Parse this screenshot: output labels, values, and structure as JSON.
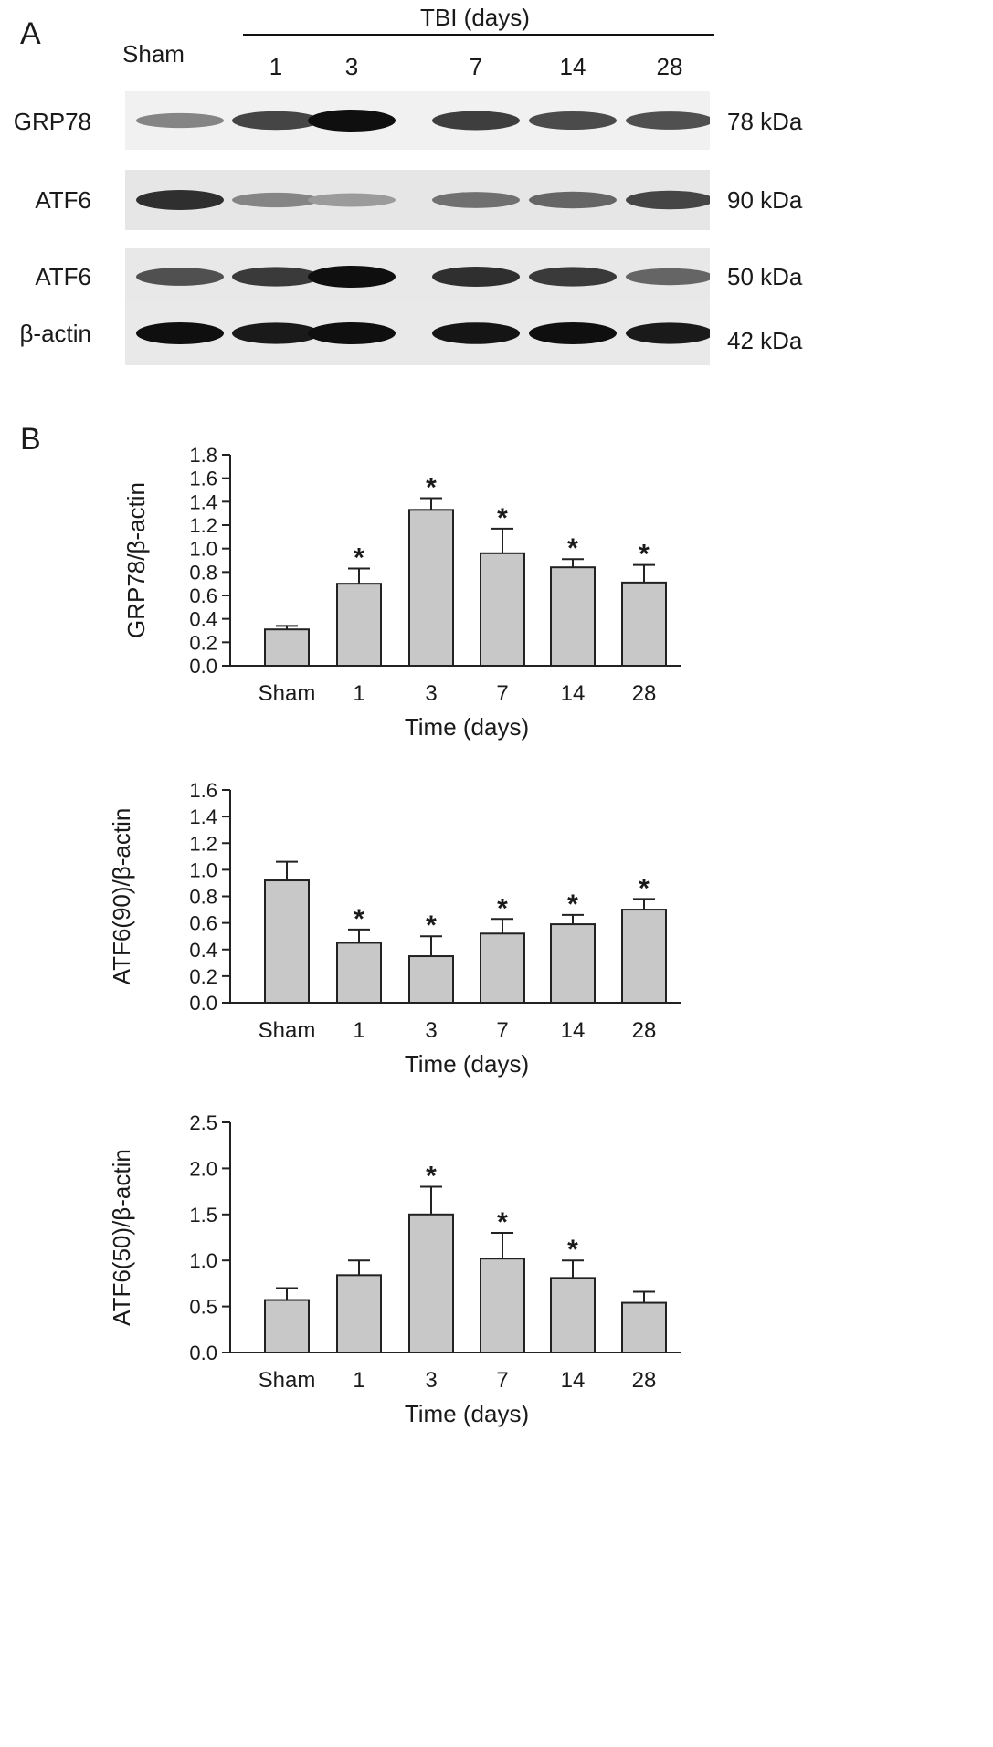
{
  "panel_a": {
    "letter": "A",
    "header": "TBI (days)",
    "lanes": [
      "Sham",
      "1",
      "3",
      "7",
      "14",
      "28"
    ],
    "rows": [
      {
        "label": "GRP78",
        "kda": "78 kDa",
        "intensity": [
          0.45,
          0.75,
          1.0,
          0.78,
          0.72,
          0.7
        ],
        "bg": "#f1f1f1"
      },
      {
        "label": "ATF6",
        "kda": "90 kDa",
        "intensity": [
          0.85,
          0.45,
          0.35,
          0.55,
          0.6,
          0.75
        ],
        "bg": "#e6e6e6"
      },
      {
        "label": "ATF6",
        "kda": "50 kDa",
        "intensity": [
          0.7,
          0.8,
          1.0,
          0.85,
          0.8,
          0.6
        ],
        "bg": "#e8e8e8"
      },
      {
        "label": "β-actin",
        "kda": "42 kDa",
        "intensity": [
          1.0,
          0.95,
          1.0,
          0.97,
          1.0,
          0.95
        ],
        "bg": "#e9e9e9"
      }
    ]
  },
  "panel_b": {
    "letter": "B"
  },
  "chart_data": [
    {
      "type": "bar",
      "categories": [
        "Sham",
        "1",
        "3",
        "7",
        "14",
        "28"
      ],
      "values": [
        0.31,
        0.7,
        1.33,
        0.96,
        0.84,
        0.71
      ],
      "errors": [
        0.03,
        0.13,
        0.1,
        0.21,
        0.07,
        0.15
      ],
      "significant": [
        false,
        true,
        true,
        true,
        true,
        true
      ],
      "star": "*",
      "ylabel": "GRP78/β-actin",
      "xlabel": "Time (days)",
      "ylim": [
        0,
        1.8
      ],
      "yticks": [
        "0.0",
        "0.2",
        "0.4",
        "0.6",
        "0.8",
        "1.0",
        "1.2",
        "1.4",
        "1.6",
        "1.8"
      ],
      "bar_color": "#c8c8c8"
    },
    {
      "type": "bar",
      "categories": [
        "Sham",
        "1",
        "3",
        "7",
        "14",
        "28"
      ],
      "values": [
        0.92,
        0.45,
        0.35,
        0.52,
        0.59,
        0.7
      ],
      "errors": [
        0.14,
        0.1,
        0.15,
        0.11,
        0.07,
        0.08
      ],
      "significant": [
        false,
        true,
        true,
        true,
        true,
        true
      ],
      "star": "*",
      "ylabel": "ATF6(90)/β-actin",
      "xlabel": "Time (days)",
      "ylim": [
        0,
        1.6
      ],
      "yticks": [
        "0.0",
        "0.2",
        "0.4",
        "0.6",
        "0.8",
        "1.0",
        "1.2",
        "1.4",
        "1.6"
      ],
      "bar_color": "#c8c8c8"
    },
    {
      "type": "bar",
      "categories": [
        "Sham",
        "1",
        "3",
        "7",
        "14",
        "28"
      ],
      "values": [
        0.57,
        0.84,
        1.5,
        1.02,
        0.81,
        0.54
      ],
      "errors": [
        0.13,
        0.16,
        0.3,
        0.28,
        0.19,
        0.12
      ],
      "significant": [
        false,
        false,
        true,
        true,
        true,
        false
      ],
      "star": "*",
      "ylabel": "ATF6(50)/β-actin",
      "xlabel": "Time (days)",
      "ylim": [
        0,
        2.5
      ],
      "yticks": [
        "0.0",
        "0.5",
        "1.0",
        "1.5",
        "2.0",
        "2.5"
      ],
      "bar_color": "#c8c8c8"
    }
  ]
}
